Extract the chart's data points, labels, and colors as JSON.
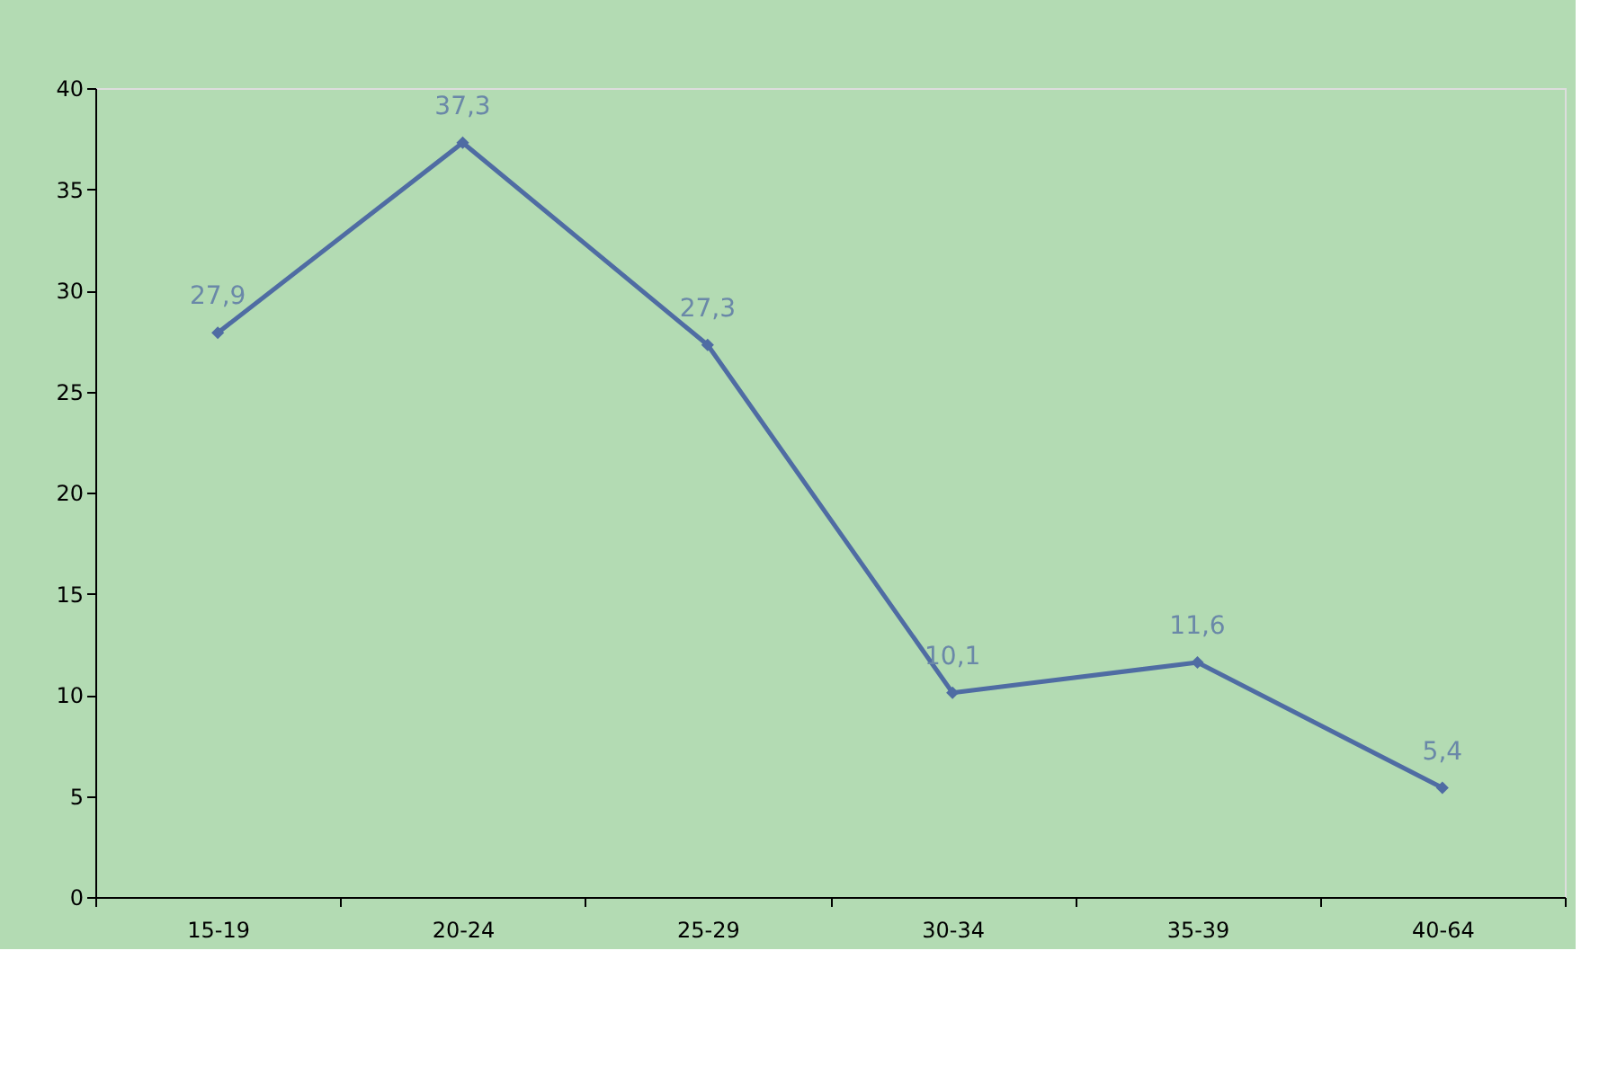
{
  "chart_data": {
    "type": "line",
    "categories": [
      "15-19",
      "20-24",
      "25-29",
      "30-34",
      "35-39",
      "40-64"
    ],
    "series": [
      {
        "color": "#4f6ca3",
        "values": [
          27.9,
          37.3,
          27.3,
          10.1,
          11.6,
          5.4
        ],
        "value_labels": [
          "27,9",
          "37,3",
          "27,3",
          "10,1",
          "11,6",
          "5,4"
        ]
      }
    ],
    "ylim": [
      0,
      40
    ],
    "yticks": [
      0,
      5,
      10,
      15,
      20,
      25,
      30,
      35,
      40
    ],
    "grid": false,
    "marker": "diamond",
    "line_style": "solid"
  }
}
